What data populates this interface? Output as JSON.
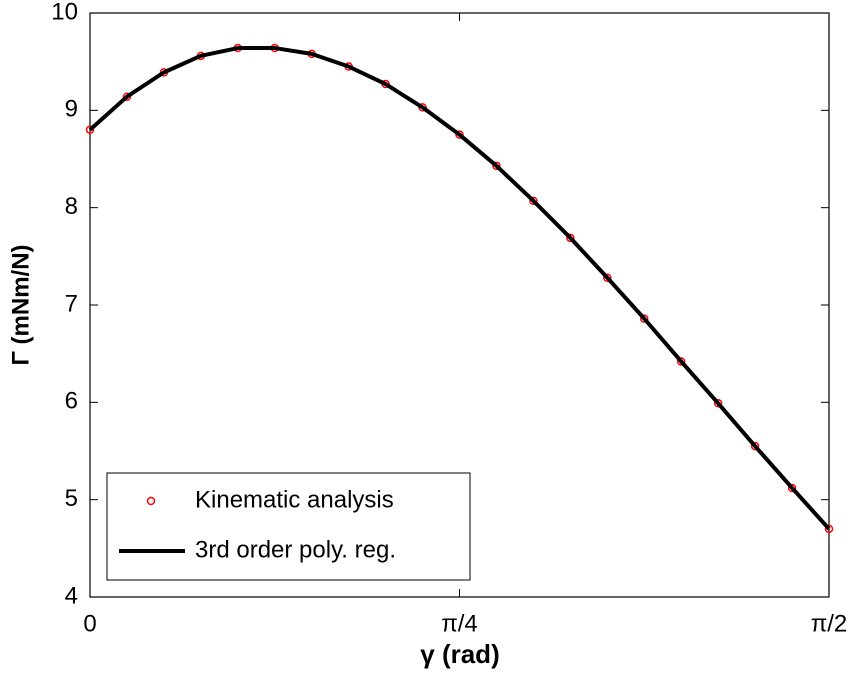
{
  "chart_data": {
    "type": "line",
    "xlabel": "γ (rad)",
    "ylabel": "Γ (mNm/N)",
    "x": [
      0,
      0.0785,
      0.1571,
      0.2356,
      0.3142,
      0.3927,
      0.4712,
      0.5498,
      0.6283,
      0.7069,
      0.7854,
      0.8639,
      0.9425,
      1.021,
      1.0996,
      1.1781,
      1.2566,
      1.3352,
      1.4137,
      1.4923,
      1.5708
    ],
    "series": [
      {
        "name": "Kinematic analysis",
        "color": "#ff0000",
        "marker": "circle",
        "values": [
          8.8,
          9.14,
          9.39,
          9.56,
          9.64,
          9.64,
          9.58,
          9.45,
          9.27,
          9.03,
          8.75,
          8.43,
          8.07,
          7.69,
          7.28,
          6.86,
          6.42,
          5.99,
          5.55,
          5.12,
          4.7
        ]
      },
      {
        "name": "3rd order poly. reg.",
        "color": "#000000",
        "marker": "none",
        "values": [
          8.8,
          9.14,
          9.39,
          9.56,
          9.64,
          9.64,
          9.58,
          9.45,
          9.27,
          9.03,
          8.75,
          8.43,
          8.07,
          7.69,
          7.28,
          6.86,
          6.42,
          5.99,
          5.55,
          5.12,
          4.7
        ]
      }
    ],
    "xlim": [
      0,
      1.5708
    ],
    "xticks": [
      0,
      {
        "value": 0.7854,
        "label": "π/4"
      },
      {
        "value": 1.5708,
        "label": "π/2"
      }
    ],
    "ylim": [
      4,
      10
    ],
    "yticks": [
      4,
      5,
      6,
      7,
      8,
      9,
      10
    ],
    "grid": false,
    "legend": "lower left"
  }
}
